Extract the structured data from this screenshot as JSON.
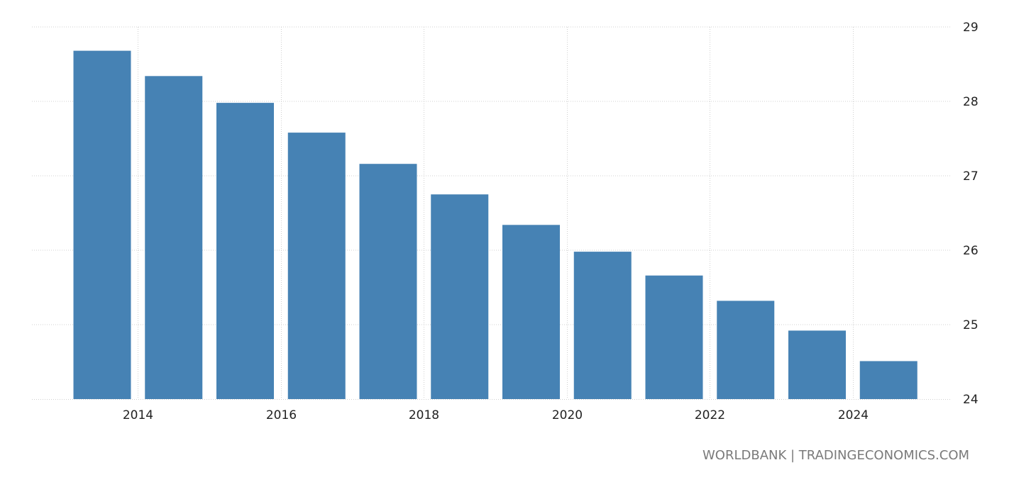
{
  "chart_data": {
    "type": "bar",
    "x": [
      2013,
      2014,
      2015,
      2016,
      2017,
      2018,
      2019,
      2020,
      2021,
      2022,
      2023,
      2024
    ],
    "values": [
      28.68,
      28.34,
      27.98,
      27.58,
      27.16,
      26.75,
      26.34,
      25.98,
      25.66,
      25.32,
      24.92,
      24.51
    ],
    "x_tick_labels": [
      "2014",
      "2016",
      "2018",
      "2020",
      "2022",
      "2024"
    ],
    "y_tick_labels": [
      "24",
      "25",
      "26",
      "27",
      "28",
      "29"
    ],
    "ylim": [
      24,
      29
    ],
    "y_axis_position": "right",
    "grid": true,
    "legend": "none",
    "colors": {
      "bar": "#4682b4",
      "grid": "#d0d0d0"
    }
  },
  "source": "WORLDBANK | TRADINGECONOMICS.COM"
}
